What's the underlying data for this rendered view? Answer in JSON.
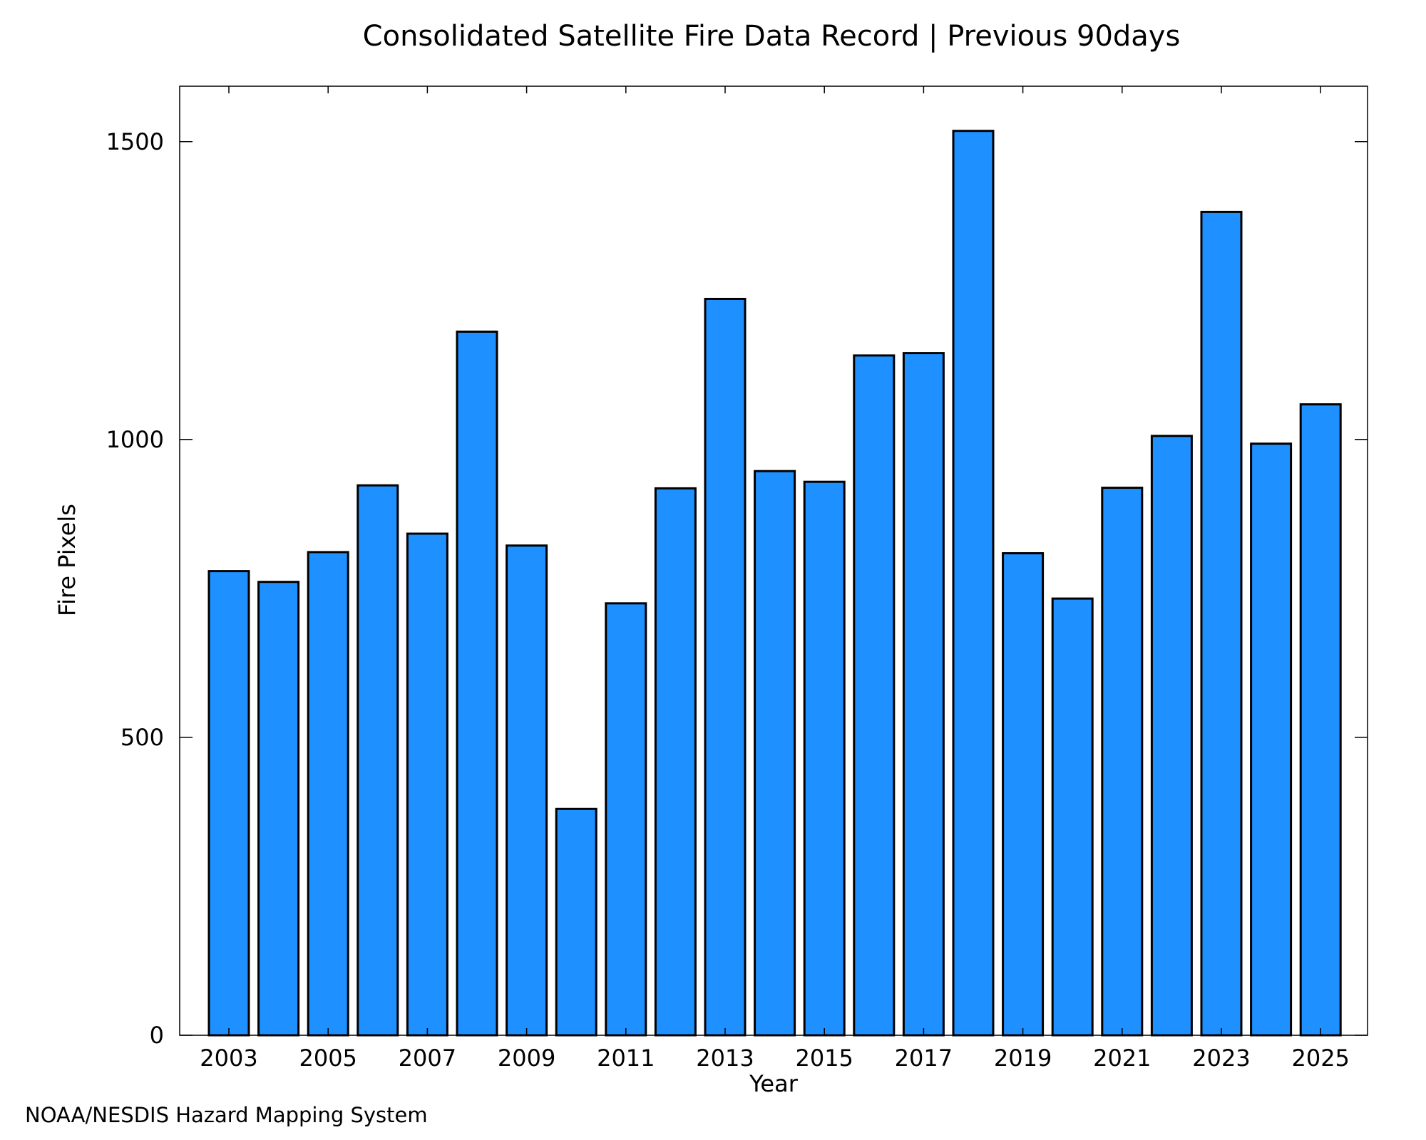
{
  "chart_data": {
    "type": "bar",
    "title": "Consolidated Satellite Fire Data Record | Previous 90days",
    "xlabel": "Year",
    "ylabel": "Fire Pixels",
    "credit": "NOAA/NESDIS Hazard Mapping System",
    "categories": [
      "2003",
      "2004",
      "2005",
      "2006",
      "2007",
      "2008",
      "2009",
      "2010",
      "2011",
      "2012",
      "2013",
      "2014",
      "2015",
      "2016",
      "2017",
      "2018",
      "2019",
      "2020",
      "2021",
      "2022",
      "2023",
      "2024",
      "2025"
    ],
    "values": [
      779,
      761,
      811,
      923,
      842,
      1181,
      822,
      380,
      725,
      918,
      1236,
      947,
      929,
      1141,
      1145,
      1518,
      809,
      733,
      919,
      1006,
      1382,
      993,
      1059
    ],
    "x_tick_labels": [
      "2003",
      "2005",
      "2007",
      "2009",
      "2011",
      "2013",
      "2015",
      "2017",
      "2019",
      "2021",
      "2023",
      "2025"
    ],
    "y_ticks": [
      0,
      500,
      1000,
      1500
    ],
    "ylim": [
      0,
      1593
    ],
    "grid": false,
    "legend": "none",
    "bar_color": "#1e90ff",
    "edge_color": "#000000",
    "credit_color": "#808080"
  }
}
